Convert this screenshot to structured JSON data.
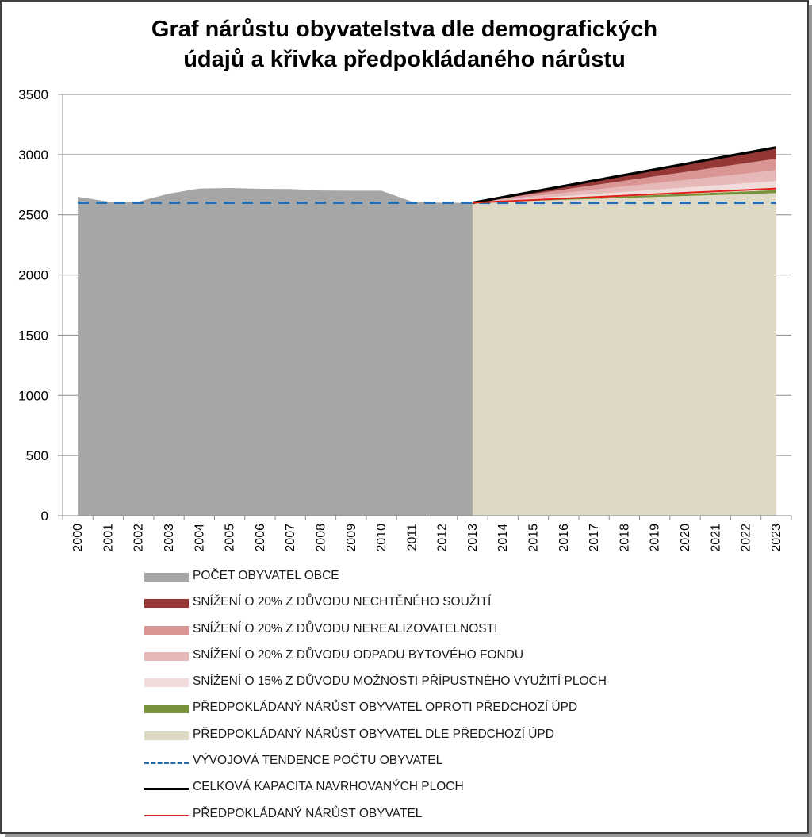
{
  "chart_data": {
    "type": "area",
    "title_lines": [
      "Graf nárůstu obyvatelstva dle demografických",
      "údajů a křivka předpokládaného nárůstu"
    ],
    "xlabel": "",
    "ylabel": "",
    "ylim": [
      0,
      3500
    ],
    "yticks": [
      0,
      500,
      1000,
      1500,
      2000,
      2500,
      3000,
      3500
    ],
    "grid": true,
    "legend_position": "bottom",
    "categories": [
      "2000",
      "2001",
      "2002",
      "2003",
      "2004",
      "2005",
      "2006",
      "2007",
      "2008",
      "2009",
      "2010",
      "2011",
      "2012",
      "2013",
      "2014",
      "2015",
      "2016",
      "2017",
      "2018",
      "2019",
      "2020",
      "2021",
      "2022",
      "2023"
    ],
    "historical_series": {
      "name": "POČET OBYVATEL OBCE",
      "color": "#a6a6a6",
      "x": [
        "2000",
        "2001",
        "2002",
        "2003",
        "2004",
        "2005",
        "2006",
        "2007",
        "2008",
        "2009",
        "2010",
        "2011",
        "2012",
        "2013"
      ],
      "values": [
        2650,
        2610,
        2610,
        2675,
        2718,
        2722,
        2716,
        2714,
        2702,
        2700,
        2700,
        2610,
        2600,
        2600
      ]
    },
    "projection_x": [
      "2013",
      "2023"
    ],
    "projection_series": [
      {
        "name": "PŘEDPOKLÁDANÝ NÁRŮST OBYVATEL DLE PŘEDCHOZÍ ÚPD",
        "color": "#ddd9c4",
        "values": [
          2600,
          2680
        ]
      },
      {
        "name": "PŘEDPOKLÁDANÝ NÁRŮST OBYVATEL OPROTI PŘEDCHOZÍ ÚPD",
        "color": "#76933c",
        "values": [
          2600,
          2705
        ]
      },
      {
        "name": "SNÍŽENÍ O 15% Z DŮVODU MOŽNOSTI PŘÍPUSTNÉHO VYUŽITÍ PLOCH",
        "color": "#f2dcdb",
        "values": [
          2600,
          2780
        ]
      },
      {
        "name": "SNÍŽENÍ O 20% Z DŮVODU ODPADU BYTOVÉHO FONDU",
        "color": "#e6b9b8",
        "values": [
          2600,
          2870
        ]
      },
      {
        "name": "SNÍŽENÍ O 20% Z DŮVODU NEREALIZOVATELNOSTI",
        "color": "#d99694",
        "values": [
          2600,
          2965
        ]
      },
      {
        "name": "SNÍŽENÍ O 20% Z DŮVODU NECHTĚNÉHO SOUŽITÍ",
        "color": "#953735",
        "values": [
          2600,
          3055
        ]
      }
    ],
    "line_series": [
      {
        "name": "VÝVOJOVÁ TENDENCE POČTU OBYVATEL",
        "color": "#1f6eb4",
        "style": "dashed",
        "x": [
          "2000",
          "2023"
        ],
        "values": [
          2600,
          2600
        ]
      },
      {
        "name": "CELKOVÁ KAPACITA NAVRHOVANÝCH PLOCH",
        "color": "#000000",
        "style": "solid",
        "x": [
          "2013",
          "2023"
        ],
        "values": [
          2600,
          3060
        ]
      },
      {
        "name": "PŘEDPOKLÁDANÝ NÁRŮST OBYVATEL",
        "color": "#e0201b",
        "style": "solid",
        "x": [
          "2013",
          "2023"
        ],
        "values": [
          2600,
          2718
        ]
      }
    ]
  },
  "legend": [
    {
      "label": "POČET OBYVATEL OBCE",
      "color": "#a6a6a6",
      "kind": "box"
    },
    {
      "label": "SNÍŽENÍ O 20% Z DŮVODU NECHTĚNÉHO SOUŽITÍ",
      "color": "#953735",
      "kind": "box"
    },
    {
      "label": "SNÍŽENÍ O 20% Z DŮVODU NEREALIZOVATELNOSTI",
      "color": "#d99694",
      "kind": "box"
    },
    {
      "label": "SNÍŽENÍ O 20% Z DŮVODU ODPADU BYTOVÉHO FONDU",
      "color": "#e6b9b8",
      "kind": "box"
    },
    {
      "label": "SNÍŽENÍ O 15% Z DŮVODU MOŽNOSTI PŘÍPUSTNÉHO VYUŽITÍ PLOCH",
      "color": "#f2dcdb",
      "kind": "box"
    },
    {
      "label": "PŘEDPOKLÁDANÝ NÁRŮST OBYVATEL OPROTI PŘEDCHOZÍ ÚPD",
      "color": "#76933c",
      "kind": "box"
    },
    {
      "label": "PŘEDPOKLÁDANÝ NÁRŮST OBYVATEL DLE PŘEDCHOZÍ ÚPD",
      "color": "#ddd9c4",
      "kind": "box"
    },
    {
      "label": "VÝVOJOVÁ TENDENCE POČTU OBYVATEL",
      "color": "#1f6eb4",
      "kind": "dash"
    },
    {
      "label": "CELKOVÁ KAPACITA NAVRHOVANÝCH PLOCH",
      "color": "#000000",
      "kind": "thick"
    },
    {
      "label": "PŘEDPOKLÁDANÝ NÁRŮST OBYVATEL",
      "color": "#e0201b",
      "kind": "thin"
    }
  ]
}
